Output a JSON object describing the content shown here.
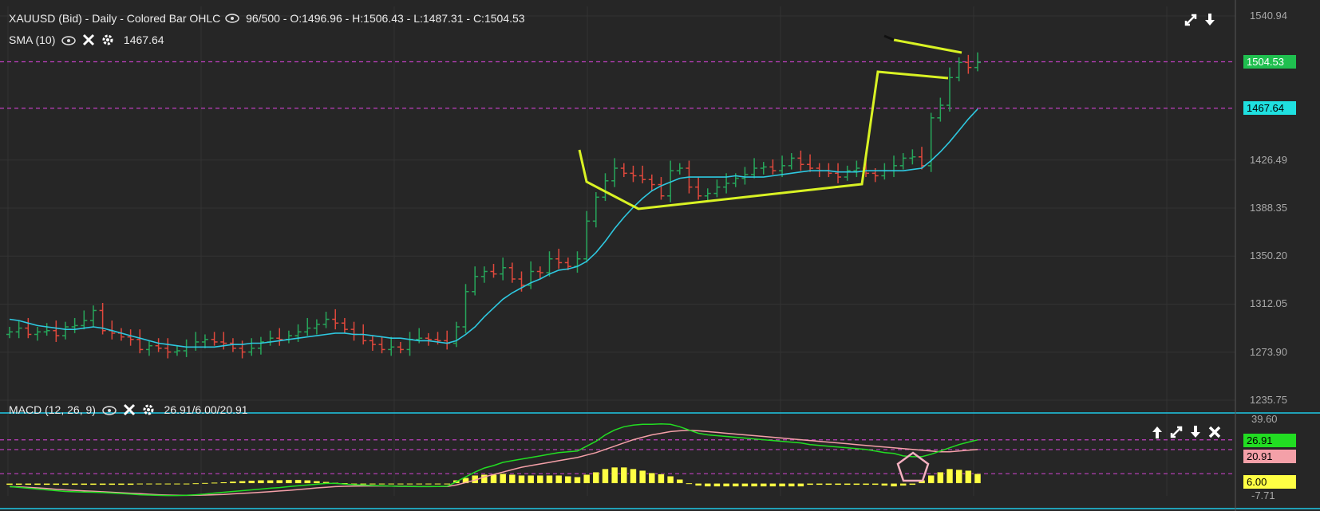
{
  "header": {
    "symbol_line": "XAUUSD (Bid) - Daily - Colored Bar OHLC",
    "bars": "96/500",
    "ohlc": "- O:1496.96 - H:1506.43 - L:1487.31 - C:1504.53",
    "sma_label": "SMA (10)",
    "sma_value": "1467.64",
    "macd_label": "MACD (12, 26, 9)",
    "macd_value": "26.91/6.00/20.91"
  },
  "price_axis": {
    "ticks": [
      "1540.94",
      "1426.49",
      "1388.35",
      "1350.20",
      "1312.05",
      "1273.90",
      "1235.75"
    ],
    "last_price": "1504.53",
    "sma_price": "1467.64",
    "colors": {
      "last": "#1fbf4f",
      "sma": "#1fe0e0"
    }
  },
  "macd_axis": {
    "ticks": [
      "39.60",
      "-7.71"
    ],
    "macd_tag": "26.91",
    "signal_tag": "20.91",
    "hist_tag": "6.00",
    "colors": {
      "macd": "#22dd22",
      "signal": "#f4a0a8",
      "hist": "#ffff44"
    }
  },
  "icons": {
    "top_right": [
      "expand-icon",
      "download-icon"
    ],
    "macd_right": [
      "move-up-icon",
      "expand-icon",
      "move-down-icon",
      "close-icon"
    ]
  },
  "chart_data": [
    {
      "type": "ohlc",
      "ylim": [
        1235.75,
        1540.94
      ],
      "closes": [
        1290,
        1293,
        1288,
        1290,
        1291,
        1287,
        1294,
        1295,
        1299,
        1307,
        1291,
        1289,
        1286,
        1284,
        1276,
        1279,
        1277,
        1274,
        1275,
        1278,
        1282,
        1284,
        1282,
        1281,
        1277,
        1274,
        1277,
        1282,
        1285,
        1284,
        1287,
        1290,
        1293,
        1296,
        1300,
        1297,
        1292,
        1288,
        1283,
        1280,
        1276,
        1278,
        1276,
        1284,
        1285,
        1284,
        1283,
        1281,
        1294,
        1322,
        1334,
        1338,
        1336,
        1341,
        1332,
        1327,
        1338,
        1337,
        1348,
        1345,
        1342,
        1348,
        1378,
        1397,
        1410,
        1420,
        1416,
        1414,
        1411,
        1407,
        1398,
        1418,
        1420,
        1405,
        1398,
        1400,
        1405,
        1408,
        1412,
        1415,
        1420,
        1421,
        1418,
        1422,
        1428,
        1423,
        1420,
        1418,
        1416,
        1413,
        1418,
        1420,
        1416,
        1414,
        1418,
        1422,
        1428,
        1429,
        1422,
        1460,
        1470,
        1492,
        1504,
        1500,
        1504
      ],
      "sma": [
        1300,
        1299,
        1297,
        1295,
        1294,
        1293,
        1292,
        1292,
        1293,
        1294,
        1293,
        1291,
        1289,
        1287,
        1285,
        1283,
        1281,
        1280,
        1279,
        1278,
        1278,
        1278,
        1278,
        1279,
        1280,
        1280,
        1281,
        1281,
        1282,
        1283,
        1284,
        1285,
        1286,
        1287,
        1288,
        1289,
        1289,
        1288,
        1288,
        1287,
        1286,
        1285,
        1285,
        1284,
        1283,
        1283,
        1282,
        1281,
        1283,
        1288,
        1294,
        1302,
        1309,
        1316,
        1321,
        1325,
        1329,
        1332,
        1336,
        1339,
        1340,
        1342,
        1346,
        1353,
        1362,
        1372,
        1381,
        1389,
        1396,
        1402,
        1406,
        1409,
        1412,
        1413,
        1413,
        1413,
        1413,
        1413,
        1414,
        1413,
        1413,
        1413,
        1414,
        1415,
        1416,
        1417,
        1418,
        1418,
        1418,
        1417,
        1417,
        1417,
        1418,
        1418,
        1418,
        1418,
        1418,
        1419,
        1420,
        1426,
        1433,
        1441,
        1450,
        1459,
        1467
      ]
    },
    {
      "type": "line",
      "series": [
        {
          "name": "MACD",
          "values": [
            -2,
            -2.5,
            -3,
            -3.5,
            -4,
            -4.5,
            -5,
            -5.2,
            -5.4,
            -5.5,
            -5.7,
            -6,
            -6.3,
            -6.6,
            -7,
            -7.2,
            -7.4,
            -7.5,
            -7.5,
            -7.3,
            -7,
            -6.6,
            -6,
            -5.5,
            -5,
            -4.5,
            -4,
            -3.5,
            -3,
            -2.6,
            -2,
            -1.5,
            -1,
            -0.5,
            0,
            0,
            -0.4,
            -0.8,
            -1,
            -1.3,
            -1.5,
            -1.7,
            -1.8,
            -1.9,
            -2,
            -2,
            -1.9,
            -1.8,
            1,
            4,
            7,
            9.5,
            11,
            13,
            14,
            15,
            16,
            17,
            18,
            19,
            19.5,
            20,
            23,
            26,
            30,
            33,
            35,
            36,
            36.5,
            36.5,
            36.8,
            36.5,
            35,
            33,
            31,
            30,
            29.5,
            29,
            28.5,
            28,
            27.5,
            27,
            26.5,
            26,
            25.5,
            25,
            24,
            23.5,
            23,
            22.5,
            22,
            21.5,
            21,
            20,
            19,
            18.5,
            17,
            16.5,
            16.5,
            18,
            20,
            22,
            24,
            25.5,
            26.91
          ]
        },
        {
          "name": "Signal",
          "values": [
            -2,
            -2.2,
            -2.5,
            -2.8,
            -3.2,
            -3.6,
            -4,
            -4.3,
            -4.6,
            -4.9,
            -5.2,
            -5.5,
            -5.8,
            -6.1,
            -6.4,
            -6.7,
            -7,
            -7.2,
            -7.3,
            -7.4,
            -7.3,
            -7.2,
            -7,
            -6.8,
            -6.5,
            -6.2,
            -5.9,
            -5.5,
            -5.1,
            -4.7,
            -4.3,
            -3.8,
            -3.3,
            -2.8,
            -2.4,
            -2,
            -1.8,
            -1.7,
            -1.6,
            -1.6,
            -1.6,
            -1.7,
            -1.8,
            -1.8,
            -1.9,
            -1.9,
            -1.9,
            -1.9,
            -1,
            0.5,
            2,
            4,
            5.5,
            7,
            8.5,
            10,
            11,
            12,
            13,
            14,
            15,
            16,
            17.5,
            19,
            21,
            23,
            25,
            27,
            28.5,
            30,
            31,
            32,
            32.5,
            32.8,
            32.5,
            32,
            31.5,
            31,
            30.5,
            30,
            29.5,
            29,
            28.5,
            28,
            27.5,
            27,
            26.5,
            26,
            25.5,
            25,
            24.5,
            24,
            23.5,
            23,
            22.5,
            22,
            21.5,
            21,
            20.5,
            20,
            19.5,
            19.5,
            20,
            20.5,
            20.91
          ]
        }
      ],
      "histogram": [
        -1,
        -1,
        -1,
        -1,
        -1,
        -1,
        -1,
        -1,
        -1,
        -1,
        -1,
        -1,
        -1,
        -1,
        -0.6,
        -0.5,
        -0.4,
        -0.3,
        -0.2,
        -0.1,
        0.2,
        0.4,
        0.6,
        0.8,
        1.2,
        1.5,
        1.8,
        2,
        2,
        2.1,
        2.2,
        2.2,
        2,
        1.5,
        1,
        0.5,
        0.3,
        -0.1,
        -0.2,
        -0.2,
        -0.2,
        -0.2,
        -0.2,
        -0.2,
        -0.2,
        -0.2,
        -0.2,
        -0.2,
        2,
        3.5,
        5,
        5.5,
        5.5,
        6,
        5.5,
        5,
        5,
        5,
        5,
        5,
        4.5,
        4,
        5.5,
        7,
        9,
        10,
        10,
        9,
        8,
        6.5,
        5.8,
        4.5,
        2.5,
        0.2,
        -1.5,
        -2,
        -2,
        -2,
        -2,
        -2,
        -2,
        -2,
        -2,
        -2,
        -2,
        -2,
        -1,
        -1,
        -1,
        -1,
        -1,
        -1,
        -1,
        -1,
        -1.5,
        -2,
        -1.5,
        -1,
        2,
        5,
        7,
        9,
        8.5,
        8,
        6
      ],
      "ylim": [
        -7.71,
        39.6
      ]
    }
  ]
}
